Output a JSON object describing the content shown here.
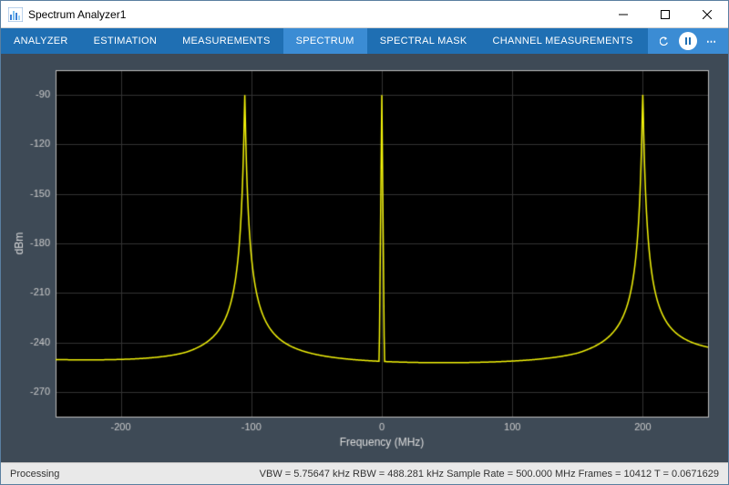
{
  "window": {
    "title": "Spectrum Analyzer1",
    "icon_bars": [
      "#3a7fd5",
      "#7cc0f0",
      "#3a7fd5",
      "#9bd1f5"
    ]
  },
  "toolstrip": {
    "tabs": [
      {
        "label": "ANALYZER",
        "selected": false
      },
      {
        "label": "ESTIMATION",
        "selected": false
      },
      {
        "label": "MEASUREMENTS",
        "selected": false
      },
      {
        "label": "SPECTRUM",
        "selected": true
      },
      {
        "label": "SPECTRAL MASK",
        "selected": false
      },
      {
        "label": "CHANNEL MEASUREMENTS",
        "selected": false
      }
    ],
    "bg_color": "#1f6fb3",
    "selected_bg_color": "#3b8cd4"
  },
  "chart": {
    "type": "line",
    "xlabel": "Frequency (MHz)",
    "ylabel": "dBm",
    "xlim": [
      -250,
      250
    ],
    "ylim": [
      -285,
      -75
    ],
    "xticks": [
      -200,
      -100,
      0,
      100,
      200
    ],
    "yticks": [
      -270,
      -240,
      -210,
      -180,
      -150,
      -120,
      -90
    ],
    "background_color": "#000000",
    "panel_color": "#3e4a56",
    "grid_color": "#333333",
    "axis_color": "#bbbbbb",
    "tick_label_color": "#cccccc",
    "label_color": "#dddddd",
    "label_fontsize": 12,
    "tick_fontsize": 11,
    "line_color": "#f5f50a",
    "line_width": 1.5,
    "peaks": [
      {
        "freq": -105,
        "level": -90
      },
      {
        "freq": 0,
        "level": -90
      },
      {
        "freq": 200,
        "level": -90
      }
    ],
    "noise_floor_center": -260,
    "noise_floor_edges": -232,
    "center_spike_half_width": 2,
    "resonance_a": 600
  },
  "status": {
    "left": "Processing",
    "items": [
      "VBW = 5.75647 kHz",
      "RBW = 488.281 kHz",
      "Sample Rate = 500.000 MHz",
      "Frames = 10412",
      "T = 0.0671629"
    ]
  }
}
